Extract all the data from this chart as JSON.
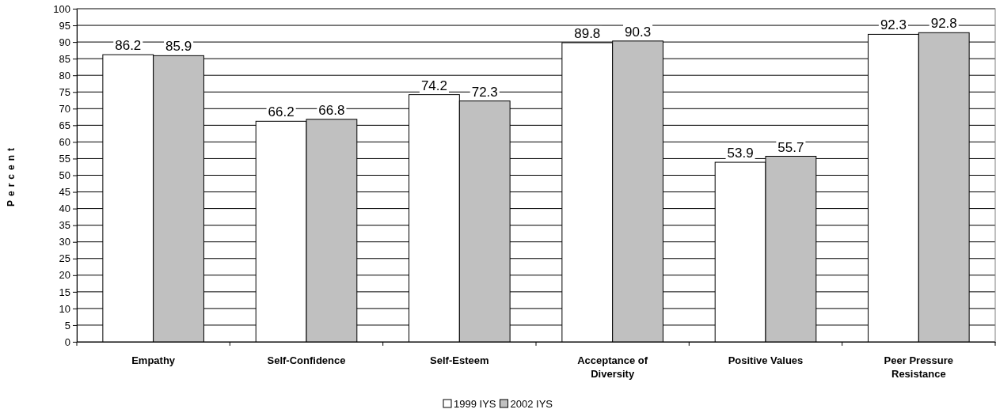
{
  "chart_data": {
    "type": "bar",
    "ylabel": "Percent",
    "categories": [
      "Empathy",
      "Self-Confidence",
      "Self-Esteem",
      "Acceptance of Diversity",
      "Positive Values",
      "Peer Pressure Resistance"
    ],
    "series": [
      {
        "name": "1999 IYS",
        "color": "#ffffff",
        "values": [
          86.2,
          66.2,
          74.2,
          89.8,
          53.9,
          92.3
        ]
      },
      {
        "name": "2002 IYS",
        "color": "#c0c0c0",
        "values": [
          85.9,
          66.8,
          72.3,
          90.3,
          55.7,
          92.8
        ]
      }
    ],
    "ylim": [
      0,
      100
    ],
    "yticks": [
      0,
      5,
      10,
      15,
      20,
      25,
      30,
      35,
      40,
      45,
      50,
      55,
      60,
      65,
      70,
      75,
      80,
      85,
      90,
      95,
      100
    ],
    "grid": "y",
    "data_labels": true,
    "legend": "bottom"
  }
}
